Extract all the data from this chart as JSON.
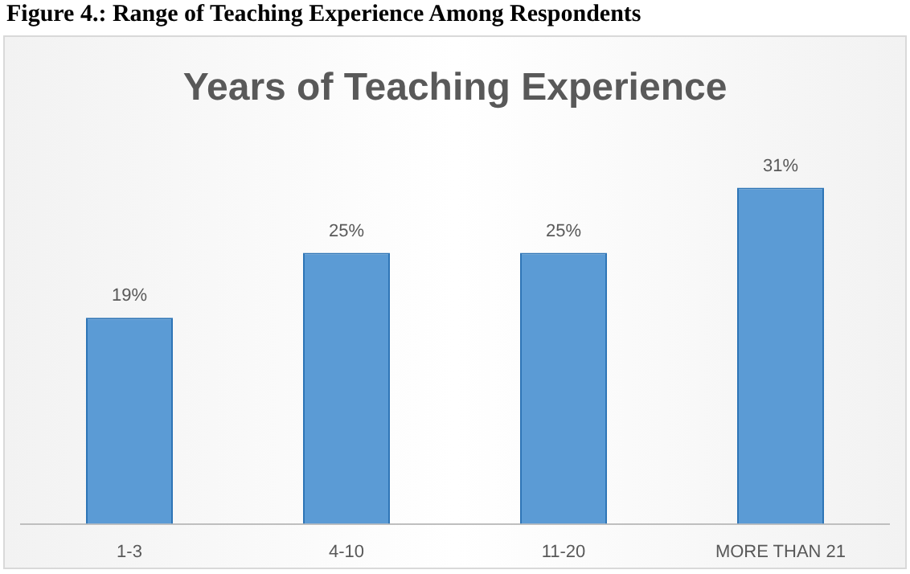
{
  "chart_data": {
    "type": "bar",
    "title": "Years of Teaching Experience",
    "annotations": [
      "Figure 4.: Range of Teaching Experience Among Respondents"
    ],
    "categories": [
      "1-3",
      "4-10",
      "11-20",
      "MORE THAN 21"
    ],
    "values": [
      19,
      25,
      25,
      31
    ],
    "color": "#5b9bd5",
    "value_labels": [
      "19%",
      "25%",
      "25%",
      "31%"
    ],
    "grid": false,
    "legend": false
  }
}
